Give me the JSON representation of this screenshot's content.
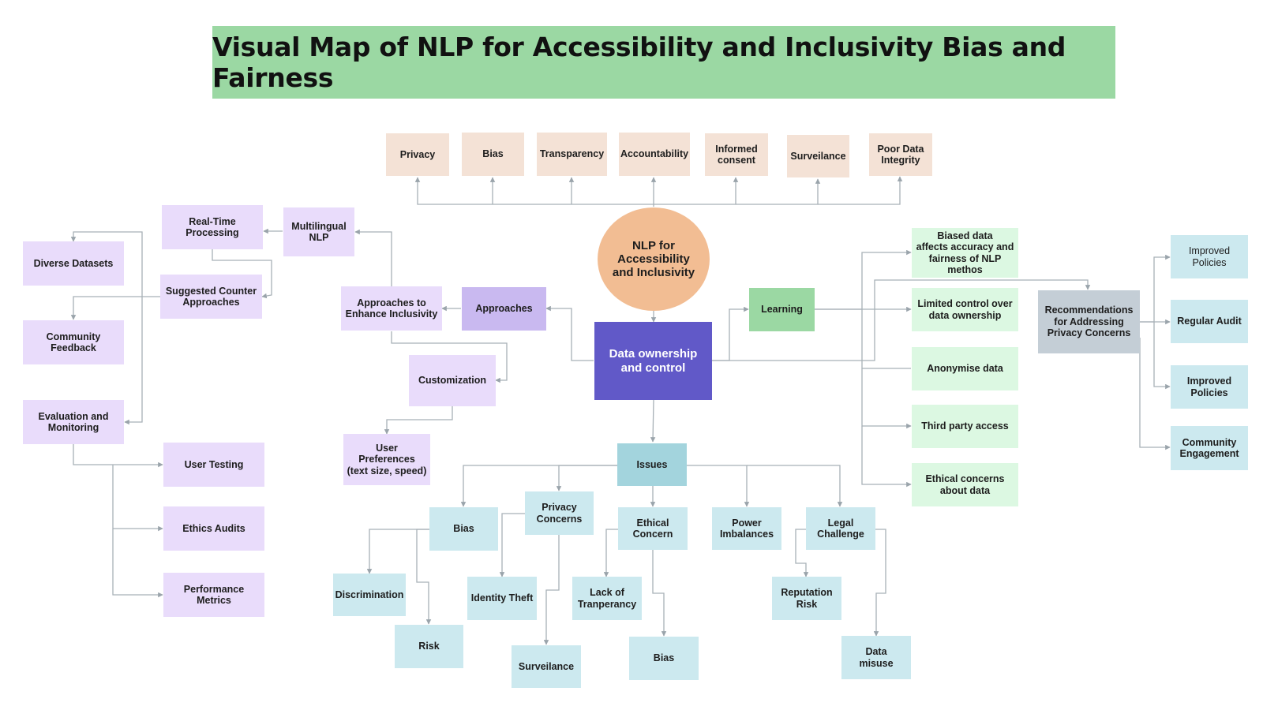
{
  "title": "Visual Map of NLP for Accessibility and Inclusivity Bias and Fairness",
  "colors": {
    "title_bg": "#9bd8a3",
    "central_circle": "#f2bd93",
    "data_ownership": "#6159c8",
    "approach_nodes": "#e9dcfb",
    "concern_nodes": "#f4e2d6",
    "learning_nodes": "#dcf8e2",
    "issue_nodes": "#cce9ef",
    "connector": "#9aa4ab"
  },
  "nodes": {
    "privacy_top": "Privacy",
    "bias_top": "Bias",
    "transparency": "Transparency",
    "accountability": "Accountability",
    "informed_consent": "Informed\nconsent",
    "surveilance_top": "Surveilance",
    "poor_data_integrity": "Poor Data\nIntegrity",
    "center": "NLP for\nAccessibility\nand Inclusivity",
    "data_ownership": "Data ownership\nand control",
    "approaches": "Approaches",
    "approaches_enhance": "Approaches to\nEnhance Inclusivity",
    "multilingual": "Multilingual\nNLP",
    "real_time": "Real-Time\nProcessing",
    "suggested_counter": "Suggested Counter\nApproaches",
    "diverse_datasets": "Diverse Datasets",
    "community_feedback": "Community\nFeedback",
    "evaluation_monitoring": "Evaluation and\nMonitoring",
    "user_testing": "User Testing",
    "ethics_audits": "Ethics Audits",
    "performance_metrics": "Performance\nMetrics",
    "customization": "Customization",
    "user_preferences": "User Preferences\n(text size, speed)",
    "learning": "Learning",
    "biased_data": "Biased data\naffects accuracy and\nfairness of NLP\nmethos",
    "limited_control": "Limited control over\ndata ownership",
    "anonymise": "Anonymise data",
    "third_party": "Third party access",
    "ethical_concerns_data": "Ethical concerns\nabout data",
    "recommendations": "Recommendations\nfor Addressing\nPrivacy Concerns",
    "improved_policies_1": "Improved\nPolicies",
    "regular_audit": "Regular Audit",
    "improved_policies_2": "Improved\nPolicies",
    "community_engagement": "Community\nEngagement",
    "issues": "Issues",
    "bias_issue": "Bias",
    "privacy_concerns": "Privacy\nConcerns",
    "ethical_concern": "Ethical\nConcern",
    "power_imbalances": "Power\nImbalances",
    "legal_challenge": "Legal\nChallenge",
    "discrimination": "Discrimination",
    "risk": "Risk",
    "identity_theft": "Identity Theft",
    "surveilance_issue": "Surveilance",
    "lack_transparency": "Lack of\nTranperancy",
    "bias_ethical": "Bias",
    "reputation_risk": "Reputation\nRisk",
    "data_misuse": "Data\nmisuse"
  }
}
